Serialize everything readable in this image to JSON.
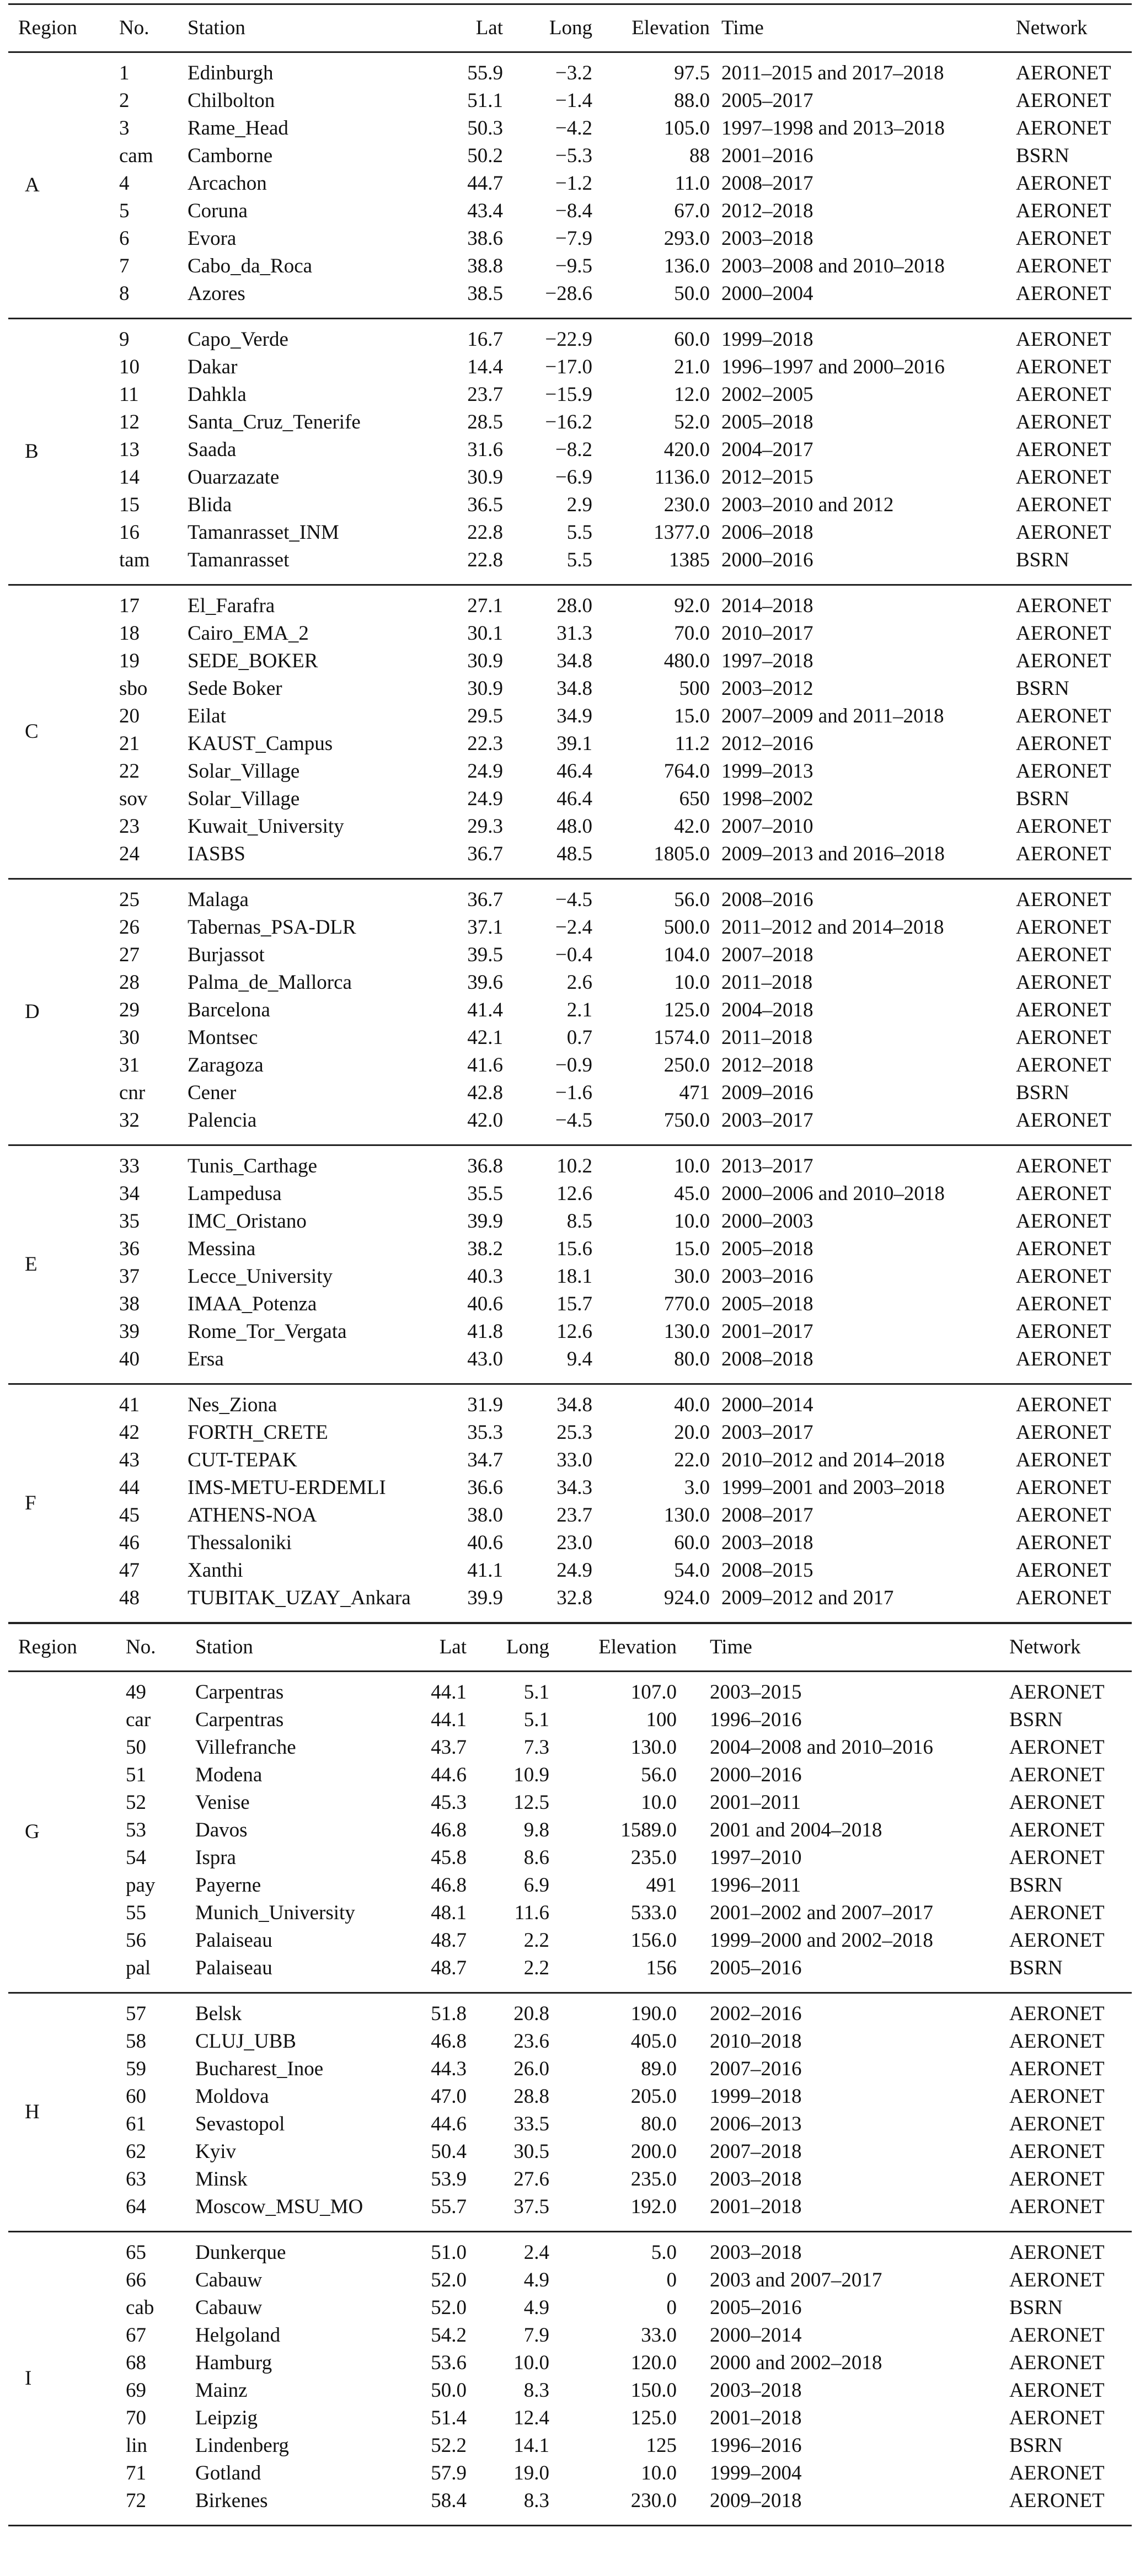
{
  "tables": [
    {
      "header": {
        "region": "Region",
        "no": "No.",
        "station": "Station",
        "lat": "Lat",
        "long": "Long",
        "elevation": "Elevation",
        "time": "Time",
        "network": "Network"
      },
      "groups": [
        {
          "region": "A",
          "rows": [
            [
              "1",
              "Edinburgh",
              "55.9",
              "−3.2",
              "97.5",
              "2011–2015 and 2017–2018",
              "AERONET"
            ],
            [
              "2",
              "Chilbolton",
              "51.1",
              "−1.4",
              "88.0",
              "2005–2017",
              "AERONET"
            ],
            [
              "3",
              "Rame_Head",
              "50.3",
              "−4.2",
              "105.0",
              "1997–1998 and 2013–2018",
              "AERONET"
            ],
            [
              "cam",
              "Camborne",
              "50.2",
              "−5.3",
              "88",
              "2001–2016",
              "BSRN"
            ],
            [
              "4",
              "Arcachon",
              "44.7",
              "−1.2",
              "11.0",
              "2008–2017",
              "AERONET"
            ],
            [
              "5",
              "Coruna",
              "43.4",
              "−8.4",
              "67.0",
              "2012–2018",
              "AERONET"
            ],
            [
              "6",
              "Evora",
              "38.6",
              "−7.9",
              "293.0",
              "2003–2018",
              "AERONET"
            ],
            [
              "7",
              "Cabo_da_Roca",
              "38.8",
              "−9.5",
              "136.0",
              "2003–2008 and 2010–2018",
              "AERONET"
            ],
            [
              "8",
              "Azores",
              "38.5",
              "−28.6",
              "50.0",
              "2000–2004",
              "AERONET"
            ]
          ]
        },
        {
          "region": "B",
          "rows": [
            [
              "9",
              "Capo_Verde",
              "16.7",
              "−22.9",
              "60.0",
              "1999–2018",
              "AERONET"
            ],
            [
              "10",
              "Dakar",
              "14.4",
              "−17.0",
              "21.0",
              "1996–1997 and 2000–2016",
              "AERONET"
            ],
            [
              "11",
              "Dahkla",
              "23.7",
              "−15.9",
              "12.0",
              "2002–2005",
              "AERONET"
            ],
            [
              "12",
              "Santa_Cruz_Tenerife",
              "28.5",
              "−16.2",
              "52.0",
              "2005–2018",
              "AERONET"
            ],
            [
              "13",
              "Saada",
              "31.6",
              "−8.2",
              "420.0",
              "2004–2017",
              "AERONET"
            ],
            [
              "14",
              "Ouarzazate",
              "30.9",
              "−6.9",
              "1136.0",
              "2012–2015",
              "AERONET"
            ],
            [
              "15",
              "Blida",
              "36.5",
              "2.9",
              "230.0",
              "2003–2010 and 2012",
              "AERONET"
            ],
            [
              "16",
              "Tamanrasset_INM",
              "22.8",
              "5.5",
              "1377.0",
              "2006–2018",
              "AERONET"
            ],
            [
              "tam",
              "Tamanrasset",
              "22.8",
              "5.5",
              "1385",
              "2000–2016",
              "BSRN"
            ]
          ]
        },
        {
          "region": "C",
          "rows": [
            [
              "17",
              "El_Farafra",
              "27.1",
              "28.0",
              "92.0",
              "2014–2018",
              "AERONET"
            ],
            [
              "18",
              "Cairo_EMA_2",
              "30.1",
              "31.3",
              "70.0",
              "2010–2017",
              "AERONET"
            ],
            [
              "19",
              "SEDE_BOKER",
              "30.9",
              "34.8",
              "480.0",
              "1997–2018",
              "AERONET"
            ],
            [
              "sbo",
              "Sede Boker",
              "30.9",
              "34.8",
              "500",
              "2003–2012",
              "BSRN"
            ],
            [
              "20",
              "Eilat",
              "29.5",
              "34.9",
              "15.0",
              "2007–2009 and 2011–2018",
              "AERONET"
            ],
            [
              "21",
              "KAUST_Campus",
              "22.3",
              "39.1",
              "11.2",
              "2012–2016",
              "AERONET"
            ],
            [
              "22",
              "Solar_Village",
              "24.9",
              "46.4",
              "764.0",
              "1999–2013",
              "AERONET"
            ],
            [
              "sov",
              "Solar_Village",
              "24.9",
              "46.4",
              "650",
              "1998–2002",
              "BSRN"
            ],
            [
              "23",
              "Kuwait_University",
              "29.3",
              "48.0",
              "42.0",
              "2007–2010",
              "AERONET"
            ],
            [
              "24",
              "IASBS",
              "36.7",
              "48.5",
              "1805.0",
              "2009–2013 and 2016–2018",
              "AERONET"
            ]
          ]
        },
        {
          "region": "D",
          "rows": [
            [
              "25",
              "Malaga",
              "36.7",
              "−4.5",
              "56.0",
              "2008–2016",
              "AERONET"
            ],
            [
              "26",
              "Tabernas_PSA-DLR",
              "37.1",
              "−2.4",
              "500.0",
              "2011–2012 and 2014–2018",
              "AERONET"
            ],
            [
              "27",
              "Burjassot",
              "39.5",
              "−0.4",
              "104.0",
              "2007–2018",
              "AERONET"
            ],
            [
              "28",
              "Palma_de_Mallorca",
              "39.6",
              "2.6",
              "10.0",
              "2011–2018",
              "AERONET"
            ],
            [
              "29",
              "Barcelona",
              "41.4",
              "2.1",
              "125.0",
              "2004–2018",
              "AERONET"
            ],
            [
              "30",
              "Montsec",
              "42.1",
              "0.7",
              "1574.0",
              "2011–2018",
              "AERONET"
            ],
            [
              "31",
              "Zaragoza",
              "41.6",
              "−0.9",
              "250.0",
              "2012–2018",
              "AERONET"
            ],
            [
              "cnr",
              "Cener",
              "42.8",
              "−1.6",
              "471",
              "2009–2016",
              "BSRN"
            ],
            [
              "32",
              "Palencia",
              "42.0",
              "−4.5",
              "750.0",
              "2003–2017",
              "AERONET"
            ]
          ]
        },
        {
          "region": "E",
          "rows": [
            [
              "33",
              "Tunis_Carthage",
              "36.8",
              "10.2",
              "10.0",
              "2013–2017",
              "AERONET"
            ],
            [
              "34",
              "Lampedusa",
              "35.5",
              "12.6",
              "45.0",
              "2000–2006 and 2010–2018",
              "AERONET"
            ],
            [
              "35",
              "IMC_Oristano",
              "39.9",
              "8.5",
              "10.0",
              "2000–2003",
              "AERONET"
            ],
            [
              "36",
              "Messina",
              "38.2",
              "15.6",
              "15.0",
              "2005–2018",
              "AERONET"
            ],
            [
              "37",
              "Lecce_University",
              "40.3",
              "18.1",
              "30.0",
              "2003–2016",
              "AERONET"
            ],
            [
              "38",
              "IMAA_Potenza",
              "40.6",
              "15.7",
              "770.0",
              "2005–2018",
              "AERONET"
            ],
            [
              "39",
              "Rome_Tor_Vergata",
              "41.8",
              "12.6",
              "130.0",
              "2001–2017",
              "AERONET"
            ],
            [
              "40",
              "Ersa",
              "43.0",
              "9.4",
              "80.0",
              "2008–2018",
              "AERONET"
            ]
          ]
        },
        {
          "region": "F",
          "rows": [
            [
              "41",
              "Nes_Ziona",
              "31.9",
              "34.8",
              "40.0",
              "2000–2014",
              "AERONET"
            ],
            [
              "42",
              "FORTH_CRETE",
              "35.3",
              "25.3",
              "20.0",
              "2003–2017",
              "AERONET"
            ],
            [
              "43",
              "CUT-TEPAK",
              "34.7",
              "33.0",
              "22.0",
              "2010–2012 and 2014–2018",
              "AERONET"
            ],
            [
              "44",
              "IMS-METU-ERDEMLI",
              "36.6",
              "34.3",
              "3.0",
              "1999–2001 and 2003–2018",
              "AERONET"
            ],
            [
              "45",
              "ATHENS-NOA",
              "38.0",
              "23.7",
              "130.0",
              "2008–2017",
              "AERONET"
            ],
            [
              "46",
              "Thessaloniki",
              "40.6",
              "23.0",
              "60.0",
              "2003–2018",
              "AERONET"
            ],
            [
              "47",
              "Xanthi",
              "41.1",
              "24.9",
              "54.0",
              "2008–2015",
              "AERONET"
            ],
            [
              "48",
              "TUBITAK_UZAY_Ankara",
              "39.9",
              "32.8",
              "924.0",
              "2009–2012 and 2017",
              "AERONET"
            ]
          ]
        }
      ]
    },
    {
      "header": {
        "region": "Region",
        "no": "No.",
        "station": "Station",
        "lat": "Lat",
        "long": "Long",
        "elevation": "Elevation",
        "time": "Time",
        "network": "Network"
      },
      "groups": [
        {
          "region": "G",
          "rows": [
            [
              "49",
              "Carpentras",
              "44.1",
              "5.1",
              "107.0",
              "2003–2015",
              "AERONET"
            ],
            [
              "car",
              "Carpentras",
              "44.1",
              "5.1",
              "100",
              "1996–2016",
              "BSRN"
            ],
            [
              "50",
              "Villefranche",
              "43.7",
              "7.3",
              "130.0",
              "2004–2008 and 2010–2016",
              "AERONET"
            ],
            [
              "51",
              "Modena",
              "44.6",
              "10.9",
              "56.0",
              "2000–2016",
              "AERONET"
            ],
            [
              "52",
              "Venise",
              "45.3",
              "12.5",
              "10.0",
              "2001–2011",
              "AERONET"
            ],
            [
              "53",
              "Davos",
              "46.8",
              "9.8",
              "1589.0",
              "2001 and 2004–2018",
              "AERONET"
            ],
            [
              "54",
              "Ispra",
              "45.8",
              "8.6",
              "235.0",
              "1997–2010",
              "AERONET"
            ],
            [
              "pay",
              "Payerne",
              "46.8",
              "6.9",
              "491",
              "1996–2011",
              "BSRN"
            ],
            [
              "55",
              "Munich_University",
              "48.1",
              "11.6",
              "533.0",
              "2001–2002 and 2007–2017",
              "AERONET"
            ],
            [
              "56",
              "Palaiseau",
              "48.7",
              "2.2",
              "156.0",
              "1999–2000 and 2002–2018",
              "AERONET"
            ],
            [
              "pal",
              "Palaiseau",
              "48.7",
              "2.2",
              "156",
              "2005–2016",
              "BSRN"
            ]
          ]
        },
        {
          "region": "H",
          "rows": [
            [
              "57",
              "Belsk",
              "51.8",
              "20.8",
              "190.0",
              "2002–2016",
              "AERONET"
            ],
            [
              "58",
              "CLUJ_UBB",
              "46.8",
              "23.6",
              "405.0",
              "2010–2018",
              "AERONET"
            ],
            [
              "59",
              "Bucharest_Inoe",
              "44.3",
              "26.0",
              "89.0",
              "2007–2016",
              "AERONET"
            ],
            [
              "60",
              "Moldova",
              "47.0",
              "28.8",
              "205.0",
              "1999–2018",
              "AERONET"
            ],
            [
              "61",
              "Sevastopol",
              "44.6",
              "33.5",
              "80.0",
              "2006–2013",
              "AERONET"
            ],
            [
              "62",
              "Kyiv",
              "50.4",
              "30.5",
              "200.0",
              "2007–2018",
              "AERONET"
            ],
            [
              "63",
              "Minsk",
              "53.9",
              "27.6",
              "235.0",
              "2003–2018",
              "AERONET"
            ],
            [
              "64",
              "Moscow_MSU_MO",
              "55.7",
              "37.5",
              "192.0",
              "2001–2018",
              "AERONET"
            ]
          ]
        },
        {
          "region": "I",
          "rows": [
            [
              "65",
              "Dunkerque",
              "51.0",
              "2.4",
              "5.0",
              "2003–2018",
              "AERONET"
            ],
            [
              "66",
              "Cabauw",
              "52.0",
              "4.9",
              "0",
              "2003 and 2007–2017",
              "AERONET"
            ],
            [
              "cab",
              "Cabauw",
              "52.0",
              "4.9",
              "0",
              "2005–2016",
              "BSRN"
            ],
            [
              "67",
              "Helgoland",
              "54.2",
              "7.9",
              "33.0",
              "2000–2014",
              "AERONET"
            ],
            [
              "68",
              "Hamburg",
              "53.6",
              "10.0",
              "120.0",
              "2000 and 2002–2018",
              "AERONET"
            ],
            [
              "69",
              "Mainz",
              "50.0",
              "8.3",
              "150.0",
              "2003–2018",
              "AERONET"
            ],
            [
              "70",
              "Leipzig",
              "51.4",
              "12.4",
              "125.0",
              "2001–2018",
              "AERONET"
            ],
            [
              "lin",
              "Lindenberg",
              "52.2",
              "14.1",
              "125",
              "1996–2016",
              "BSRN"
            ],
            [
              "71",
              "Gotland",
              "57.9",
              "19.0",
              "10.0",
              "1999–2004",
              "AERONET"
            ],
            [
              "72",
              "Birkenes",
              "58.4",
              "8.3",
              "230.0",
              "2009–2018",
              "AERONET"
            ]
          ]
        }
      ]
    }
  ]
}
